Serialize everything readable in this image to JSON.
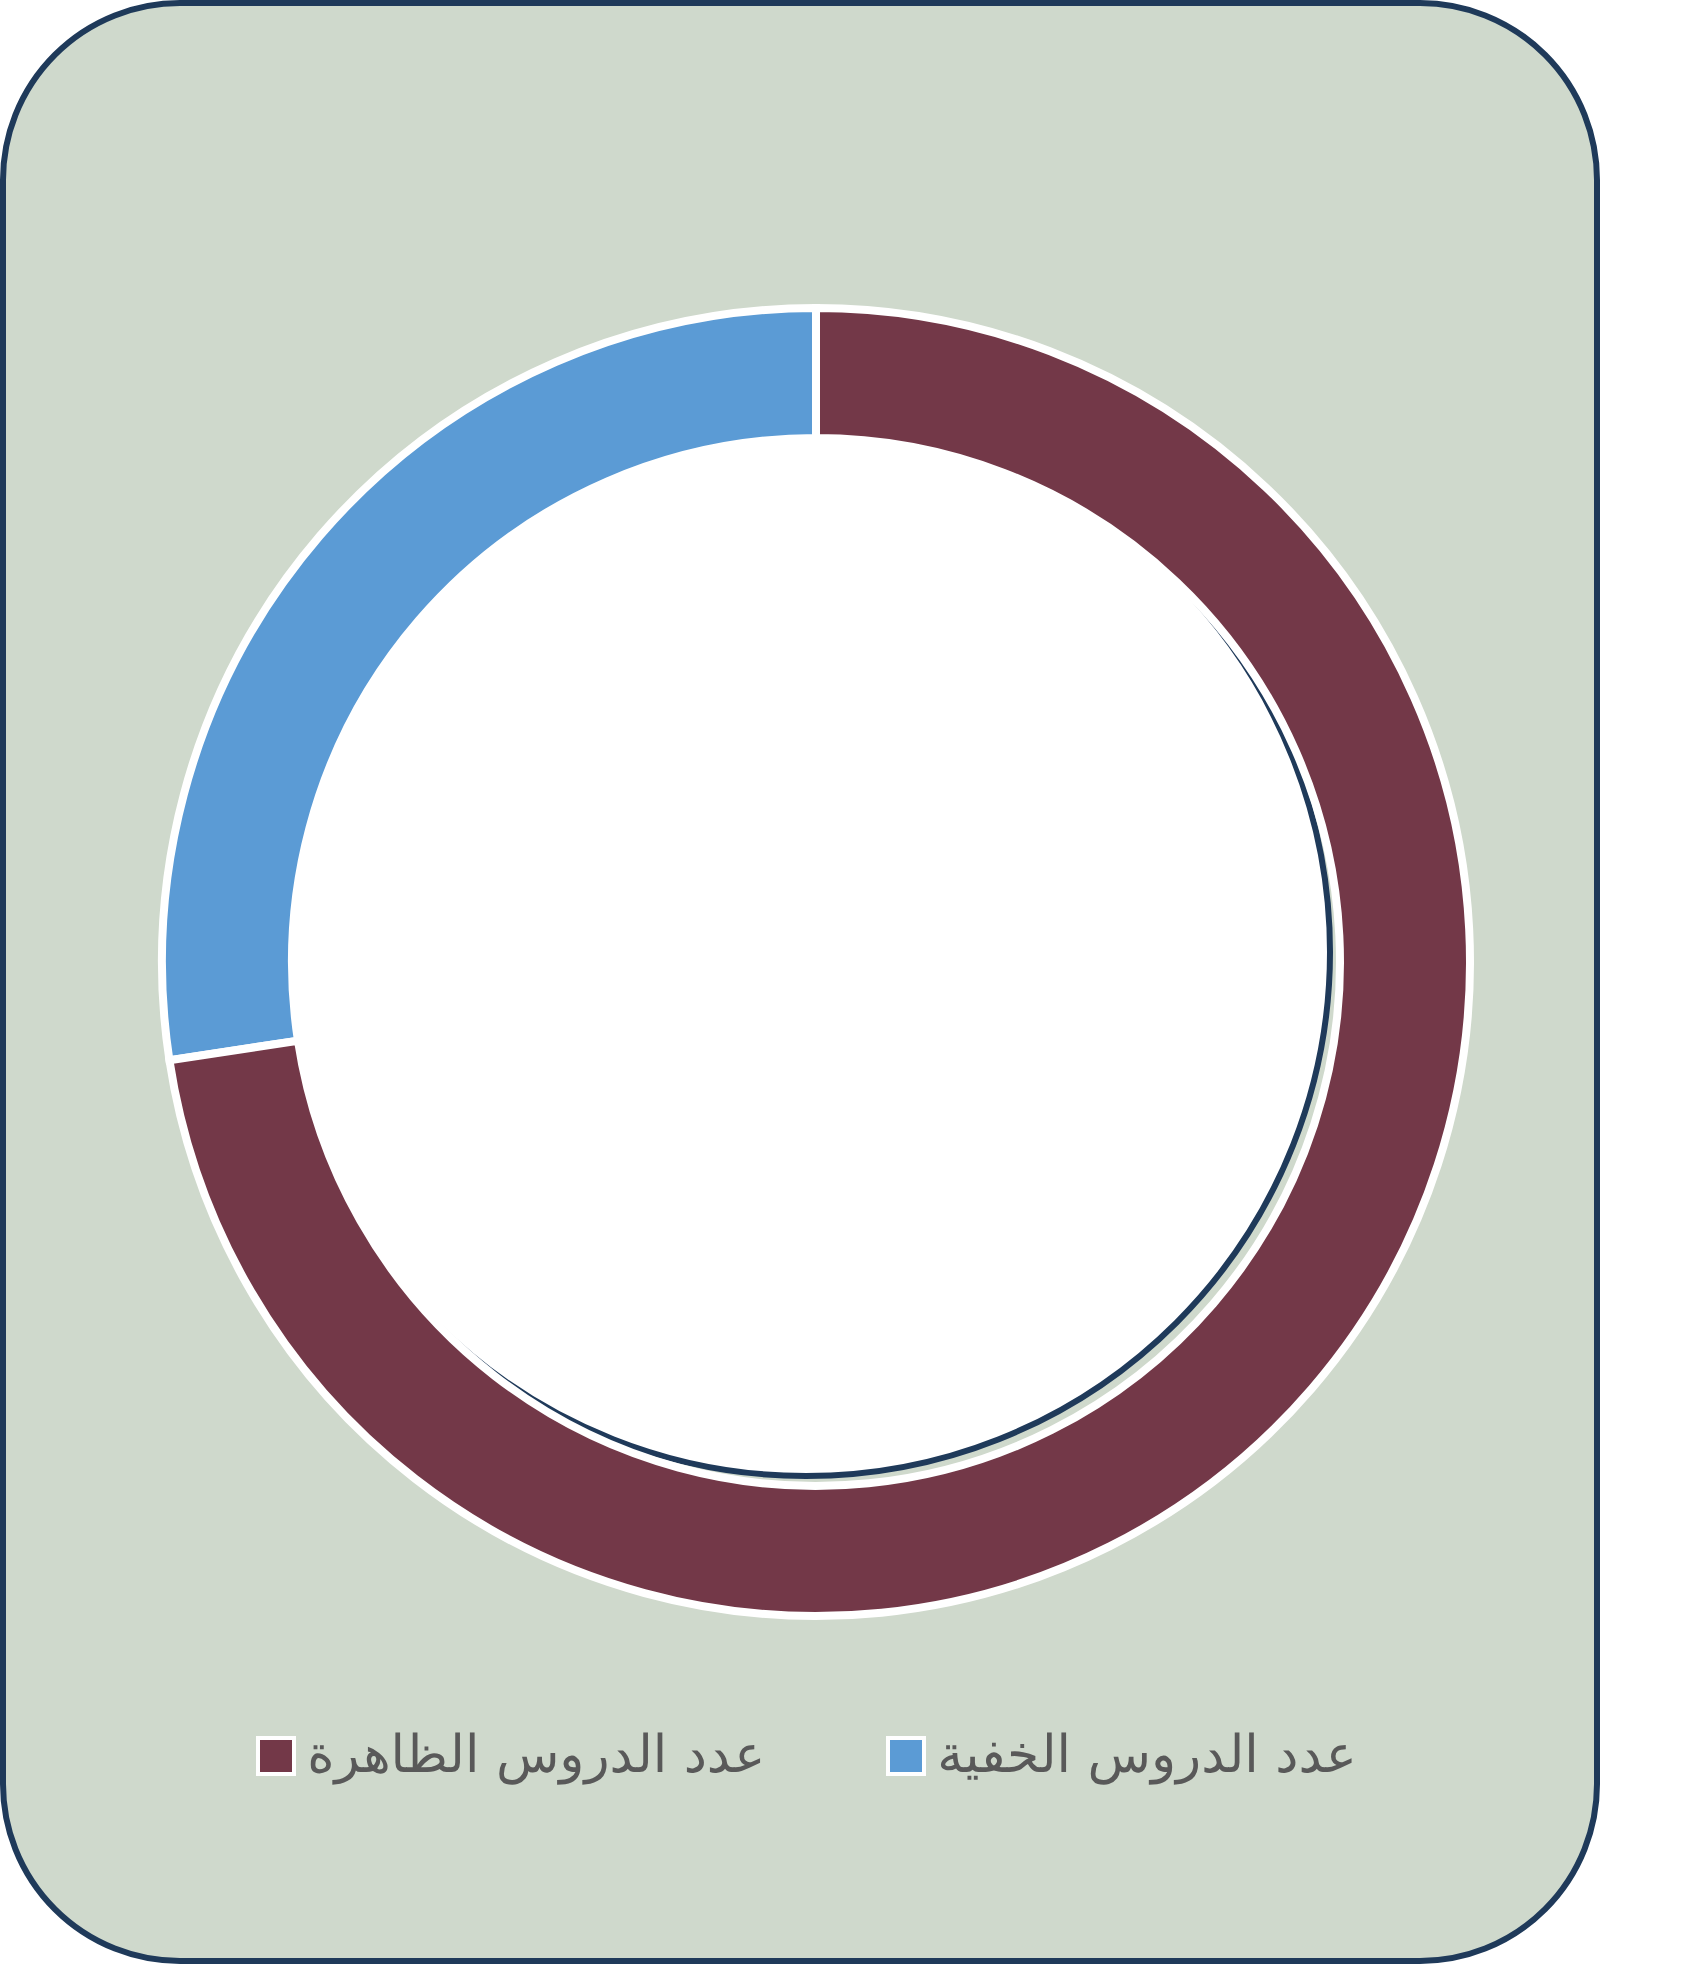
{
  "chart_data": {
    "type": "donut",
    "categories": [
      "عدد الدروس الخفية",
      "عدد الدروس الظاهرة"
    ],
    "values": [
      27.4,
      72.6
    ],
    "colors": [
      "#5b9bd5",
      "#733848"
    ],
    "legend": "bottom"
  }
}
